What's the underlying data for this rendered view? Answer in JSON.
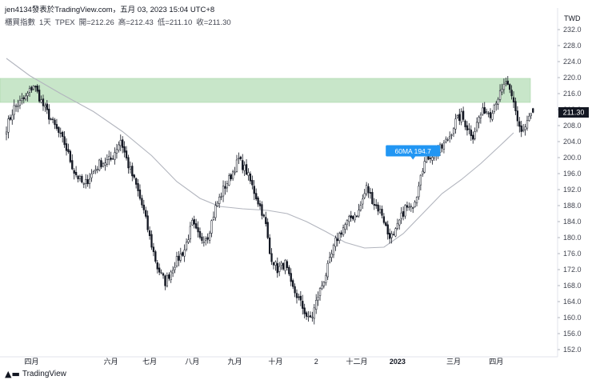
{
  "header": {
    "publish_line": "jen4134發表於TradingView.com，五月 03, 2023 15:04 UTC+8",
    "symbol_name": "櫃買指數",
    "interval": "1天",
    "exchange": "TPEX",
    "open_label": "開=212.26",
    "high_label": "高=212.43",
    "low_label": "低=211.10",
    "close_label": "收=211.30"
  },
  "footer": {
    "brand": "TradingView",
    "logo_icon": "tradingview-logo-icon"
  },
  "colors": {
    "up_candle": "#ffffff",
    "down_candle": "#131722",
    "candle_outline": "#131722",
    "ma_line": "#b2b5be",
    "zone_fill": "#c8e6c9",
    "zone_stroke": "#a5d6a7",
    "ma_label_bg": "#2196f3",
    "price_badge_bg": "#131722"
  },
  "chart_data": {
    "type": "candlestick",
    "currency": "TWD",
    "last_price_label": "211.30",
    "ylim": [
      152,
      234
    ],
    "y_ticks": [
      232,
      228,
      224,
      220,
      216,
      212,
      208,
      204,
      200,
      196,
      192,
      188,
      184,
      180,
      176,
      172,
      168,
      164,
      160,
      156,
      152
    ],
    "x_ticks": [
      {
        "label": "四月",
        "bar": 13
      },
      {
        "label": "六月",
        "bar": 54
      },
      {
        "label": "七月",
        "bar": 74
      },
      {
        "label": "八月",
        "bar": 96
      },
      {
        "label": "九月",
        "bar": 118
      },
      {
        "label": "十月",
        "bar": 139
      },
      {
        "label": "2",
        "bar": 160
      },
      {
        "label": "十二月",
        "bar": 181
      },
      {
        "label": "2023",
        "bar": 202
      },
      {
        "label": "三月",
        "bar": 231
      },
      {
        "label": "四月",
        "bar": 253
      }
    ],
    "zone": {
      "bottom": 213.8,
      "top": 219.8
    },
    "ma_label": "60MA 194.7",
    "ma_label_bar": 210,
    "ma_label_value": 201.5,
    "moving_average_60": [
      [
        0,
        224.8
      ],
      [
        12,
        220.5
      ],
      [
        28,
        216.0
      ],
      [
        45,
        211.5
      ],
      [
        60,
        206.5
      ],
      [
        75,
        200.5
      ],
      [
        88,
        194.0
      ],
      [
        100,
        189.8
      ],
      [
        110,
        187.8
      ],
      [
        122,
        187.2
      ],
      [
        135,
        186.8
      ],
      [
        145,
        186.0
      ],
      [
        155,
        184.0
      ],
      [
        165,
        181.5
      ],
      [
        175,
        178.8
      ],
      [
        185,
        177.4
      ],
      [
        195,
        177.6
      ],
      [
        205,
        181.0
      ],
      [
        215,
        186.0
      ],
      [
        225,
        191.0
      ],
      [
        235,
        194.5
      ],
      [
        245,
        198.5
      ],
      [
        255,
        203.0
      ],
      [
        262,
        206.2
      ]
    ],
    "close_anchors": [
      [
        0,
        207.5
      ],
      [
        4,
        212.5
      ],
      [
        10,
        215.0
      ],
      [
        14,
        218.2
      ],
      [
        19,
        213.0
      ],
      [
        25,
        207.8
      ],
      [
        30,
        203.5
      ],
      [
        35,
        196.5
      ],
      [
        40,
        193.0
      ],
      [
        44,
        195.8
      ],
      [
        48,
        198.5
      ],
      [
        54,
        199.5
      ],
      [
        59,
        204.5
      ],
      [
        63,
        198.0
      ],
      [
        67,
        193.0
      ],
      [
        71,
        186.5
      ],
      [
        74,
        180.0
      ],
      [
        78,
        172.5
      ],
      [
        82,
        168.8
      ],
      [
        87,
        173.5
      ],
      [
        92,
        177.0
      ],
      [
        96,
        183.5
      ],
      [
        100,
        179.5
      ],
      [
        104,
        180.5
      ],
      [
        108,
        187.5
      ],
      [
        112,
        192.0
      ],
      [
        116,
        195.5
      ],
      [
        120,
        199.5
      ],
      [
        124,
        196.5
      ],
      [
        128,
        191.5
      ],
      [
        132,
        186.5
      ],
      [
        134,
        183.0
      ],
      [
        136,
        176.0
      ],
      [
        140,
        172.0
      ],
      [
        144,
        173.5
      ],
      [
        147,
        168.0
      ],
      [
        150,
        165.5
      ],
      [
        153,
        162.5
      ],
      [
        156,
        159.5
      ],
      [
        158,
        160.5
      ],
      [
        161,
        165.5
      ],
      [
        164,
        169.5
      ],
      [
        167,
        174.0
      ],
      [
        170,
        179.0
      ],
      [
        174,
        182.5
      ],
      [
        178,
        185.0
      ],
      [
        182,
        186.5
      ],
      [
        186,
        192.5
      ],
      [
        190,
        188.5
      ],
      [
        194,
        186.0
      ],
      [
        197,
        181.0
      ],
      [
        200,
        180.0
      ],
      [
        203,
        184.0
      ],
      [
        206,
        187.5
      ],
      [
        209,
        187.0
      ],
      [
        212,
        191.0
      ],
      [
        214,
        196.5
      ],
      [
        217,
        200.0
      ],
      [
        221,
        201.0
      ],
      [
        225,
        202.5
      ],
      [
        229,
        205.5
      ],
      [
        232,
        209.0
      ],
      [
        235,
        210.5
      ],
      [
        238,
        207.5
      ],
      [
        241,
        205.5
      ],
      [
        244,
        210.0
      ],
      [
        247,
        212.0
      ],
      [
        250,
        211.0
      ],
      [
        253,
        214.5
      ],
      [
        256,
        216.5
      ],
      [
        258,
        219.0
      ],
      [
        260,
        216.0
      ],
      [
        262,
        213.5
      ],
      [
        264,
        209.5
      ],
      [
        266,
        206.5
      ],
      [
        268,
        207.5
      ],
      [
        270,
        210.0
      ],
      [
        272,
        211.3
      ]
    ]
  }
}
